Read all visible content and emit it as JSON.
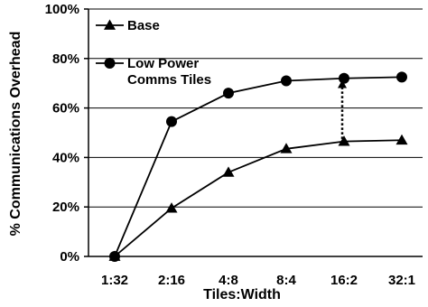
{
  "chart_data": {
    "type": "line",
    "title": "",
    "xlabel": "Tiles:Width",
    "ylabel": "% Communications Overhead",
    "categories": [
      "1:32",
      "2:16",
      "4:8",
      "8:4",
      "16:2",
      "32:1"
    ],
    "ylim": [
      0,
      100
    ],
    "yticks": [
      "0%",
      "20%",
      "40%",
      "60%",
      "80%",
      "100%"
    ],
    "grid": true,
    "legend_position": "top-left",
    "series": [
      {
        "name": "Base",
        "marker": "triangle",
        "values": [
          0,
          19.5,
          34,
          43.5,
          46.5,
          47
        ]
      },
      {
        "name": "Low Power Comms Tiles",
        "legend_lines": [
          "Low Power",
          "Comms Tiles"
        ],
        "marker": "circle",
        "values": [
          0,
          54.5,
          66,
          71,
          72,
          72.5
        ]
      }
    ],
    "annotation": {
      "type": "dotted-double-arrow",
      "category": "16:2",
      "from": 47.5,
      "to": 71
    }
  }
}
